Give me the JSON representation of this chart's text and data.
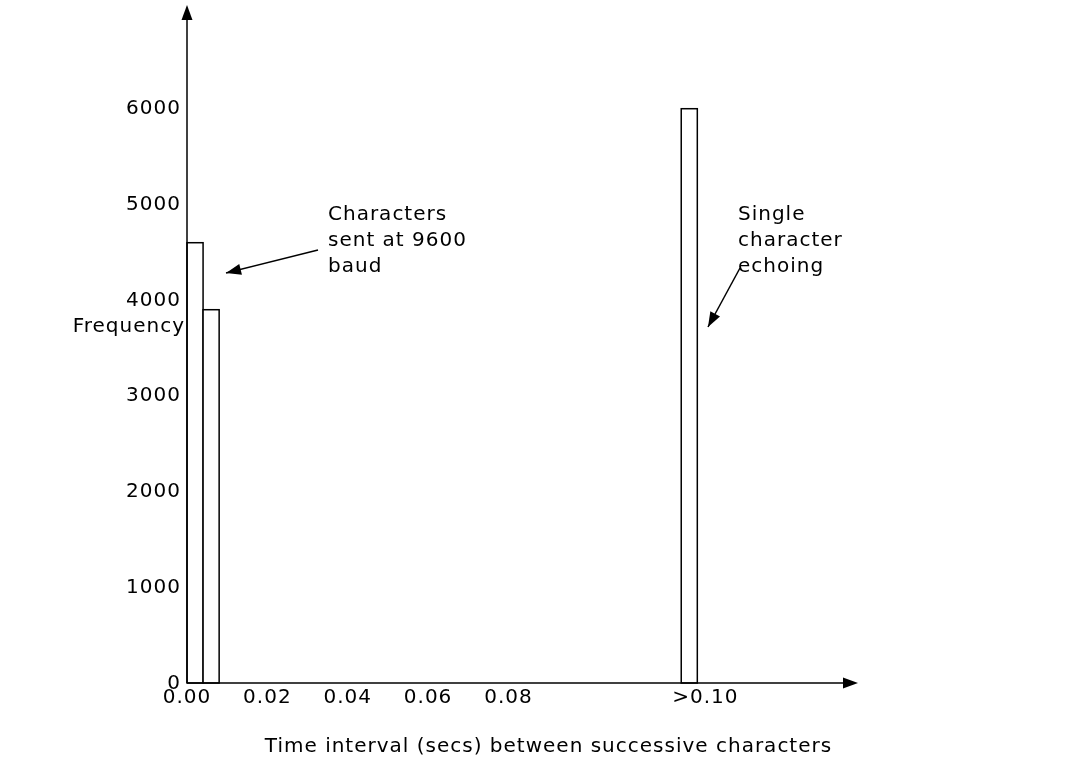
{
  "chart_data": {
    "type": "bar",
    "xlabel": "Time interval (secs) between successive characters",
    "ylabel": "Frequency",
    "x": [
      0.002,
      0.006,
      0.125
    ],
    "values": [
      4600,
      3900,
      6000
    ],
    "color": "#ffffff",
    "xlim": [
      0,
      0.165
    ],
    "xticks": [
      {
        "value": 0,
        "label": "0.00"
      },
      {
        "value": 0.02,
        "label": "0.02"
      },
      {
        "value": 0.04,
        "label": "0.04"
      },
      {
        "value": 0.06,
        "label": "0.06"
      },
      {
        "value": 0.08,
        "label": "0.08"
      },
      {
        "value": 0.129,
        "label": ">0.10"
      }
    ],
    "ylim": [
      0,
      7000
    ],
    "yticks": [
      0,
      1000,
      2000,
      3000,
      4000,
      5000,
      6000
    ],
    "annotations": [
      "Characters\nsent at 9600\nbaud",
      "Single\ncharacter\nechoing"
    ],
    "grid": false
  }
}
